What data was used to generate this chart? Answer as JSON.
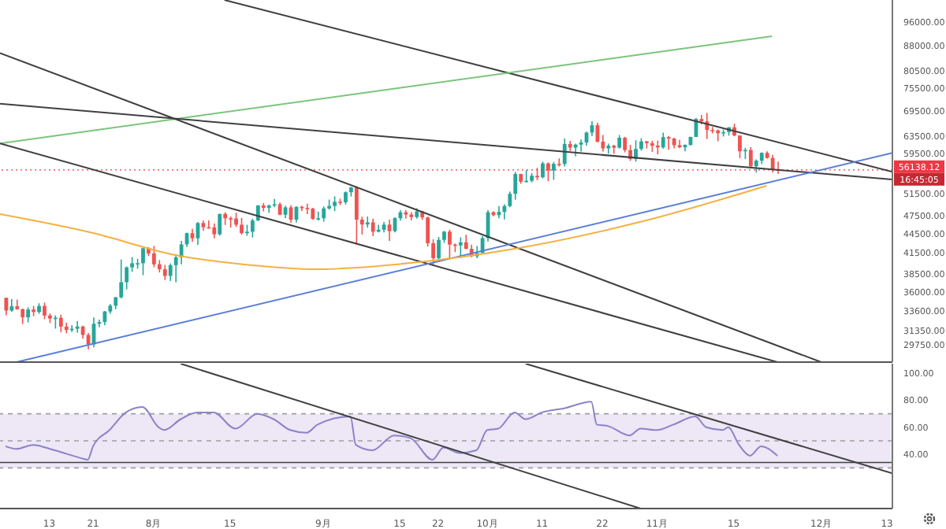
{
  "chart_data": [
    {
      "type": "candlestick",
      "tick_labels": "y",
      "log": true,
      "xlim": [
        "--07-04",
        "--12-14"
      ],
      "ylim": [
        27940,
        104000
      ],
      "yticks": [
        {
          "value": 29750,
          "label": "29750.00"
        },
        {
          "value": 31350,
          "label": "31350.00"
        },
        {
          "value": 33600,
          "label": "33600.00"
        },
        {
          "value": 36000,
          "label": "36000.00"
        },
        {
          "value": 38500,
          "label": "38500.00"
        },
        {
          "value": 41500,
          "label": "41500.00"
        },
        {
          "value": 44500,
          "label": "44500.00"
        },
        {
          "value": 47500,
          "label": "47500.00"
        },
        {
          "value": 51500,
          "label": "51500.00"
        },
        {
          "value": 59500,
          "label": "59500.00"
        },
        {
          "value": 63500,
          "label": "63500.00"
        },
        {
          "value": 69500,
          "label": "69500.00"
        },
        {
          "value": 75500,
          "label": "75500.00"
        },
        {
          "value": 80500,
          "label": "80500.00"
        },
        {
          "value": 88000,
          "label": "88000.00"
        },
        {
          "value": 96000,
          "label": "96000.00"
        }
      ],
      "x": [
        "--07-05",
        "--07-06",
        "--07-07",
        "--07-08",
        "--07-09",
        "--07-10",
        "--07-11",
        "--07-12",
        "--07-13",
        "--07-14",
        "--07-15",
        "--07-16",
        "--07-17",
        "--07-18",
        "--07-19",
        "--07-20",
        "--07-21",
        "--07-22",
        "--07-23",
        "--07-24",
        "--07-25",
        "--07-26",
        "--07-27",
        "--07-28",
        "--07-29",
        "--07-30",
        "--07-31",
        "--08-01",
        "--08-02",
        "--08-03",
        "--08-04",
        "--08-05",
        "--08-06",
        "--08-07",
        "--08-08",
        "--08-09",
        "--08-10",
        "--08-11",
        "--08-12",
        "--08-13",
        "--08-14",
        "--08-15",
        "--08-16",
        "--08-17",
        "--08-18",
        "--08-19",
        "--08-20",
        "--08-21",
        "--08-22",
        "--08-23",
        "--08-24",
        "--08-25",
        "--08-26",
        "--08-27",
        "--08-28",
        "--08-29",
        "--08-30",
        "--08-31",
        "--09-01",
        "--09-02",
        "--09-03",
        "--09-04",
        "--09-05",
        "--09-06",
        "--09-07",
        "--09-08",
        "--09-09",
        "--09-10",
        "--09-11",
        "--09-12",
        "--09-13",
        "--09-14",
        "--09-15",
        "--09-16",
        "--09-17",
        "--09-18",
        "--09-19",
        "--09-20",
        "--09-21",
        "--09-22",
        "--09-23",
        "--09-24",
        "--09-25",
        "--09-26",
        "--09-27",
        "--09-28",
        "--09-29",
        "--09-30",
        "--10-01",
        "--10-02",
        "--10-03",
        "--10-04",
        "--10-05",
        "--10-06",
        "--10-07",
        "--10-08",
        "--10-09",
        "--10-10",
        "--10-11",
        "--10-12",
        "--10-13",
        "--10-14",
        "--10-15",
        "--10-16",
        "--10-17",
        "--10-18",
        "--10-19",
        "--10-20",
        "--10-21",
        "--10-22",
        "--10-23",
        "--10-24",
        "--10-25",
        "--10-26",
        "--10-27",
        "--10-28",
        "--10-29",
        "--10-30",
        "--10-31",
        "--11-01",
        "--11-02",
        "--11-03",
        "--11-04",
        "--11-05",
        "--11-06",
        "--11-07",
        "--11-08",
        "--11-09",
        "--11-10",
        "--11-11",
        "--11-12",
        "--11-13",
        "--11-14",
        "--11-15",
        "--11-16",
        "--11-17",
        "--11-18",
        "--11-19",
        "--11-20",
        "--11-21",
        "--11-22",
        "--11-23"
      ],
      "ohlc": [
        [
          35288,
          35293,
          33125,
          33690
        ],
        [
          33690,
          35118,
          33532,
          34220
        ],
        [
          34220,
          35059,
          33777,
          33863
        ],
        [
          33863,
          33929,
          32077,
          32877
        ],
        [
          32877,
          34100,
          32261,
          33811
        ],
        [
          33811,
          34262,
          33004,
          33515
        ],
        [
          33515,
          34592,
          33300,
          34259
        ],
        [
          34259,
          34679,
          32658,
          33087
        ],
        [
          33087,
          33341,
          32202,
          32730
        ],
        [
          32730,
          33114,
          31550,
          32820
        ],
        [
          32820,
          33185,
          31133,
          31781
        ],
        [
          31781,
          32249,
          31020,
          31389
        ],
        [
          31389,
          31949,
          31164,
          31534
        ],
        [
          31534,
          32435,
          31108,
          31797
        ],
        [
          31797,
          31882,
          30408,
          30839
        ],
        [
          30839,
          31063,
          29278,
          29791
        ],
        [
          29791,
          32858,
          29482,
          32110
        ],
        [
          32110,
          32595,
          31708,
          32314
        ],
        [
          32314,
          33650,
          31925,
          33581
        ],
        [
          33581,
          34500,
          33300,
          34292
        ],
        [
          34292,
          35398,
          33851,
          35350
        ],
        [
          35350,
          40550,
          35205,
          37337
        ],
        [
          37337,
          39542,
          36383,
          39406
        ],
        [
          39406,
          40900,
          38772,
          39996
        ],
        [
          39996,
          40640,
          39200,
          40008
        ],
        [
          40008,
          42317,
          38313,
          42236
        ],
        [
          42236,
          42414,
          41064,
          41461
        ],
        [
          41461,
          42599,
          39422,
          39845
        ],
        [
          39845,
          40456,
          38690,
          39147
        ],
        [
          39147,
          39769,
          37642,
          38207
        ],
        [
          38207,
          39969,
          37509,
          39723
        ],
        [
          39723,
          41350,
          37332,
          40862
        ],
        [
          40862,
          43392,
          39853,
          42836
        ],
        [
          42836,
          44700,
          42446,
          44614
        ],
        [
          44614,
          45310,
          43261,
          43792
        ],
        [
          43792,
          46454,
          42779,
          46285
        ],
        [
          46285,
          46700,
          44987,
          45593
        ],
        [
          45593,
          46743,
          45341,
          45551
        ],
        [
          45551,
          46218,
          43770,
          44428
        ],
        [
          44428,
          47886,
          44218,
          47834
        ],
        [
          47834,
          48144,
          45971,
          47112
        ],
        [
          47112,
          47400,
          45525,
          47054
        ],
        [
          47054,
          48053,
          45660,
          46004
        ],
        [
          46004,
          47160,
          44376,
          44617
        ],
        [
          44617,
          46000,
          44203,
          44849
        ],
        [
          44849,
          47033,
          43927,
          46717
        ],
        [
          46717,
          49382,
          46630,
          49339
        ],
        [
          49339,
          49757,
          48285,
          48905
        ],
        [
          48905,
          49500,
          48050,
          49321
        ],
        [
          49321,
          50500,
          49030,
          49547
        ],
        [
          49547,
          49875,
          47600,
          47707
        ],
        [
          47707,
          49300,
          47136,
          48993
        ],
        [
          48993,
          49368,
          46315,
          46851
        ],
        [
          46851,
          49185,
          46361,
          49070
        ],
        [
          49070,
          49300,
          48345,
          48896
        ],
        [
          48896,
          49666,
          47800,
          48767
        ],
        [
          48767,
          48910,
          46850,
          46970
        ],
        [
          46970,
          48246,
          46700,
          47101
        ],
        [
          47101,
          49160,
          46513,
          48811
        ],
        [
          48811,
          50400,
          48584,
          49246
        ],
        [
          49246,
          51000,
          48316,
          49999
        ],
        [
          49999,
          50558,
          49400,
          49915
        ],
        [
          49915,
          51900,
          49500,
          51756
        ],
        [
          51756,
          52780,
          50969,
          52663
        ],
        [
          52663,
          52920,
          42843,
          46864
        ],
        [
          46864,
          47359,
          44412,
          46049
        ],
        [
          46049,
          47399,
          45514,
          46395
        ],
        [
          46395,
          47034,
          44132,
          44851
        ],
        [
          44851,
          45989,
          44730,
          45173
        ],
        [
          45173,
          46460,
          44743,
          46026
        ],
        [
          46026,
          46876,
          43370,
          44940
        ],
        [
          44940,
          47250,
          44750,
          47111
        ],
        [
          47111,
          48500,
          46700,
          48122
        ],
        [
          48122,
          48500,
          47020,
          47737
        ],
        [
          47737,
          48150,
          46750,
          47299
        ],
        [
          47299,
          48843,
          47035,
          48292
        ],
        [
          48292,
          48372,
          46830,
          47241
        ],
        [
          47241,
          47358,
          42500,
          43016
        ],
        [
          43016,
          43639,
          39600,
          40734
        ],
        [
          40734,
          44000,
          40565,
          43543
        ],
        [
          43543,
          44978,
          43069,
          44866
        ],
        [
          44866,
          45200,
          40675,
          42810
        ],
        [
          42810,
          42966,
          41647,
          42670
        ],
        [
          42670,
          43950,
          40752,
          43160
        ],
        [
          43160,
          44350,
          42098,
          42147
        ],
        [
          42147,
          42787,
          40888,
          41026
        ],
        [
          41026,
          42590,
          40753,
          41524
        ],
        [
          41524,
          44132,
          41410,
          43824
        ],
        [
          43824,
          48495,
          43283,
          48141
        ],
        [
          48141,
          48336,
          47430,
          47634
        ],
        [
          47634,
          49228,
          47088,
          48200
        ],
        [
          48200,
          49536,
          46891,
          49224
        ],
        [
          49224,
          51886,
          49022,
          51471
        ],
        [
          51471,
          55750,
          50382,
          55315
        ],
        [
          55315,
          55332,
          53357,
          53785
        ],
        [
          53785,
          56100,
          53617,
          53951
        ],
        [
          53951,
          55490,
          53661,
          54950
        ],
        [
          54950,
          56561,
          54080,
          54659
        ],
        [
          54659,
          57839,
          54415,
          57471
        ],
        [
          57471,
          57680,
          53879,
          56005
        ],
        [
          56005,
          57777,
          54167,
          57367
        ],
        [
          57367,
          58532,
          56818,
          57347
        ],
        [
          57347,
          62933,
          56850,
          61672
        ],
        [
          61672,
          62350,
          60150,
          60875
        ],
        [
          60875,
          61720,
          58963,
          61528
        ],
        [
          61528,
          62695,
          60000,
          62009
        ],
        [
          62009,
          64486,
          61322,
          64280
        ],
        [
          64280,
          67000,
          63481,
          66001
        ],
        [
          66001,
          66639,
          62000,
          62193
        ],
        [
          62193,
          63732,
          60000,
          60688
        ],
        [
          60688,
          61747,
          59562,
          61286
        ],
        [
          61286,
          61500,
          59510,
          60852
        ],
        [
          60852,
          63710,
          60650,
          63078
        ],
        [
          63078,
          63293,
          59817,
          60328
        ],
        [
          60328,
          61496,
          58000,
          58413
        ],
        [
          58413,
          62499,
          57820,
          60575
        ],
        [
          60575,
          62980,
          60174,
          62253
        ],
        [
          62253,
          62359,
          60673,
          61859
        ],
        [
          61859,
          62405,
          59945,
          61300
        ],
        [
          61300,
          62437,
          59405,
          60911
        ],
        [
          60911,
          64270,
          60624,
          63219
        ],
        [
          63219,
          63500,
          60382,
          62896
        ],
        [
          62896,
          63086,
          60677,
          61395
        ],
        [
          61395,
          62595,
          60721,
          60937
        ],
        [
          60937,
          61560,
          60050,
          61470
        ],
        [
          61470,
          63286,
          61322,
          63273
        ],
        [
          63273,
          67789,
          63273,
          67525
        ],
        [
          67525,
          68524,
          66222,
          66947
        ],
        [
          66947,
          69000,
          62822,
          64882
        ],
        [
          64882,
          65600,
          64100,
          64774
        ],
        [
          64774,
          65000,
          62278,
          64122
        ],
        [
          64122,
          64990,
          63360,
          64380
        ],
        [
          64380,
          65550,
          63576,
          65519
        ],
        [
          65519,
          66401,
          63400,
          63607
        ],
        [
          63607,
          63617,
          58575,
          60058
        ],
        [
          60058,
          60840,
          58373,
          60344
        ],
        [
          60344,
          60976,
          56474,
          56891
        ],
        [
          56891,
          58320,
          55600,
          58052
        ],
        [
          58052,
          59845,
          57353,
          59707
        ],
        [
          59707,
          60029,
          58486,
          58622
        ],
        [
          58622,
          59266,
          55610,
          56247
        ],
        [
          56247,
          57875,
          55317,
          56138.12
        ]
      ],
      "series": [
        {
          "type": "line",
          "color": "#404040",
          "x": [
            "--08-14",
            "--12-14"
          ],
          "values": [
            104000,
            55760
          ]
        },
        {
          "type": "line",
          "color": "#7cc47c",
          "x": [
            "--07-04",
            "--11-22"
          ],
          "values": [
            61800,
            91200
          ]
        },
        {
          "type": "line",
          "color": "#404040",
          "x": [
            "--07-04",
            "--12-01"
          ],
          "values": [
            85800,
            27940
          ]
        },
        {
          "type": "line",
          "color": "#404040",
          "x": [
            "--07-04",
            "--12-14"
          ],
          "values": [
            71360,
            54200
          ]
        },
        {
          "type": "line",
          "color": "#404040",
          "x": [
            "--07-04",
            "--11-23"
          ],
          "values": [
            61800,
            27940
          ]
        },
        {
          "type": "line",
          "color": "#5b7fd6",
          "x": [
            "--07-07",
            "--12-14"
          ],
          "values": [
            27940,
            59700
          ]
        },
        {
          "type": "line",
          "color": "#f5b041",
          "x": [
            "--07-04",
            "--07-21",
            "--08-05",
            "--08-18",
            "--08-31",
            "--09-17",
            "--10-06",
            "--10-30",
            "--11-21"
          ],
          "values": [
            47800,
            44630,
            41200,
            39800,
            39150,
            40040,
            42160,
            46720,
            52990
          ]
        }
      ],
      "ref_lines": [
        {
          "axis": "y",
          "value": 56138.12,
          "label": "56138.12",
          "color": "#f23645",
          "line_style": "dotted"
        }
      ],
      "annotations": [
        "16:45:05"
      ]
    },
    {
      "type": "line",
      "xlim": [
        "--07-04",
        "--12-14"
      ],
      "xticks": [
        {
          "value": "--07-13",
          "label": "13"
        },
        {
          "value": "--07-21",
          "label": "21"
        },
        {
          "value": "--08-01",
          "label": "8月"
        },
        {
          "value": "--08-15",
          "label": "15"
        },
        {
          "value": "--09-01",
          "label": "9月"
        },
        {
          "value": "--09-15",
          "label": "15"
        },
        {
          "value": "--09-22",
          "label": "22"
        },
        {
          "value": "--10-01",
          "label": "10月"
        },
        {
          "value": "--10-11",
          "label": "11"
        },
        {
          "value": "--10-22",
          "label": "22"
        },
        {
          "value": "--11-01",
          "label": "11月"
        },
        {
          "value": "--11-15",
          "label": "15"
        },
        {
          "value": "--12-01",
          "label": "12月"
        },
        {
          "value": "--12-13",
          "label": "13"
        }
      ],
      "ylim": [
        0,
        107
      ],
      "yticks": [
        {
          "value": 40,
          "label": "40.00"
        },
        {
          "value": 60,
          "label": "60.00"
        },
        {
          "value": 80,
          "label": "80.00"
        },
        {
          "value": 100,
          "label": "100.00"
        }
      ],
      "series": [
        {
          "type": "line",
          "color": "#8c82c8",
          "x": [
            "--07-05",
            "--07-07",
            "--07-10",
            "--07-14",
            "--07-19",
            "--07-20",
            "--07-21",
            "--07-24",
            "--07-27",
            "--07-30",
            "--08-02",
            "--08-03",
            "--08-06",
            "--08-09",
            "--08-12",
            "--08-16",
            "--08-20",
            "--08-23",
            "--08-26",
            "--08-29",
            "--08-31",
            "--09-06",
            "--09-07",
            "--09-10",
            "--09-14",
            "--09-17",
            "--09-21",
            "--09-23",
            "--09-26",
            "--09-29",
            "--10-01",
            "--10-03",
            "--10-06",
            "--10-08",
            "--10-11",
            "--10-15",
            "--10-20",
            "--10-21",
            "--10-23",
            "--10-27",
            "--10-29",
            "--11-01",
            "--11-04",
            "--11-08",
            "--11-10",
            "--11-13",
            "--11-14",
            "--11-16",
            "--11-18",
            "--11-20",
            "--11-23"
          ],
          "values": [
            46,
            44,
            47,
            43,
            37,
            36,
            46,
            58,
            71,
            75,
            60,
            58,
            66,
            71,
            71,
            59,
            70,
            66,
            58,
            56,
            62,
            68,
            47,
            43,
            54,
            52,
            36,
            45,
            41,
            43,
            58,
            59,
            71,
            66,
            71,
            74,
            79,
            62,
            61,
            54,
            59,
            58,
            62,
            68,
            60,
            58,
            60,
            47,
            39,
            46,
            39
          ]
        },
        {
          "type": "line",
          "color": "#404040",
          "x": [
            "--08-06",
            "--10-29"
          ],
          "values": [
            107,
            0
          ]
        },
        {
          "type": "line",
          "color": "#404040",
          "x": [
            "--10-08",
            "--12-14"
          ],
          "values": [
            107,
            26
          ]
        }
      ],
      "bands": [
        {
          "axis": "y",
          "from": 30,
          "to": 70,
          "color": "#ede7f6"
        }
      ],
      "ref_lines": [
        {
          "axis": "y",
          "value": 70,
          "color": "#9e9e9e",
          "line_style": "dashed"
        },
        {
          "axis": "y",
          "value": 50,
          "color": "#9e9e9e",
          "line_style": "dashed"
        },
        {
          "axis": "y",
          "value": 30,
          "color": "#9e9e9e",
          "line_style": "dashed"
        },
        {
          "axis": "y",
          "value": 34,
          "color": "#404040",
          "line_style": "solid"
        }
      ]
    }
  ]
}
